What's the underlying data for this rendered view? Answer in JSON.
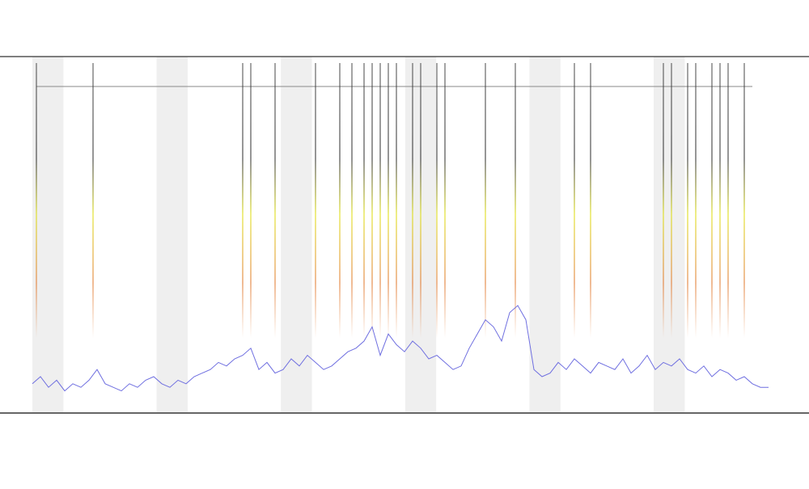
{
  "chart_data": {
    "type": "line",
    "x": [
      0,
      1,
      2,
      3,
      4,
      5,
      6,
      7,
      8,
      9,
      10,
      11,
      12,
      13,
      14,
      15,
      16,
      17,
      18,
      19,
      20,
      21,
      22,
      23,
      24,
      25,
      26,
      27,
      28,
      29,
      30,
      31,
      32,
      33,
      34,
      35,
      36,
      37,
      38,
      39,
      40,
      41,
      42,
      43,
      44,
      45,
      46,
      47,
      48,
      49,
      50,
      51,
      52,
      53,
      54,
      55,
      56,
      57,
      58,
      59,
      60,
      61,
      62,
      63,
      64,
      65,
      66,
      67,
      68,
      69,
      70,
      71,
      72,
      73,
      74,
      75,
      76,
      77,
      78,
      79,
      80,
      81,
      82,
      83,
      84,
      85,
      86,
      87,
      88,
      89,
      90,
      91
    ],
    "xlim": [
      0,
      92
    ],
    "ylim": [
      0,
      100
    ],
    "series": [
      {
        "color": "#6f6fe0",
        "values": [
          8,
          10,
          7,
          9,
          6,
          8,
          7,
          9,
          12,
          8,
          7,
          6,
          8,
          7,
          9,
          10,
          8,
          7,
          9,
          8,
          10,
          11,
          12,
          14,
          13,
          15,
          16,
          18,
          12,
          14,
          11,
          12,
          15,
          13,
          16,
          14,
          12,
          13,
          15,
          17,
          18,
          20,
          24,
          16,
          22,
          19,
          17,
          20,
          18,
          15,
          16,
          14,
          12,
          13,
          18,
          22,
          26,
          24,
          20,
          28,
          30,
          26,
          12,
          10,
          11,
          14,
          12,
          15,
          13,
          11,
          14,
          13,
          12,
          15,
          11,
          13,
          16,
          12,
          14,
          13,
          15,
          12,
          11,
          13,
          10,
          12,
          11,
          9,
          10,
          8,
          7,
          7
        ]
      }
    ],
    "events": [
      0.5,
      7.5,
      26,
      27,
      30,
      35,
      38,
      39.5,
      41,
      42,
      43,
      44,
      45,
      47,
      48,
      50,
      51,
      56,
      59.7,
      67,
      69,
      78,
      79,
      81,
      82,
      84,
      85,
      86,
      88
    ]
  }
}
